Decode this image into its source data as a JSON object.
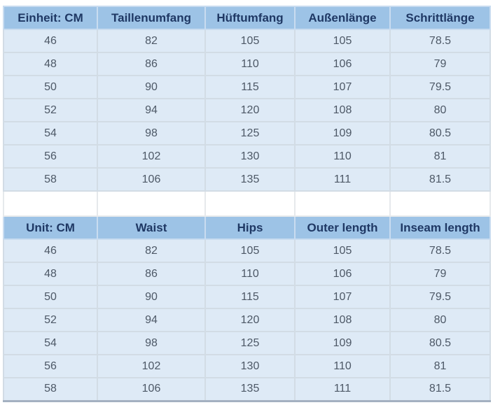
{
  "colors": {
    "header_background": "#9dc3e6",
    "header_text": "#1f3864",
    "row_background": "#deeaf6",
    "row_text": "#4d5866",
    "grid_line": "#d2dce5",
    "bottom_bar": "#a4b1c1",
    "page_background": "#ffffff"
  },
  "tables": {
    "german": {
      "headers": [
        "Einheit: CM",
        "Taillenumfang",
        "Hüftumfang",
        "Außenlänge",
        "Schrittlänge"
      ],
      "rows": [
        [
          "46",
          "82",
          "105",
          "105",
          "78.5"
        ],
        [
          "48",
          "86",
          "110",
          "106",
          "79"
        ],
        [
          "50",
          "90",
          "115",
          "107",
          "79.5"
        ],
        [
          "52",
          "94",
          "120",
          "108",
          "80"
        ],
        [
          "54",
          "98",
          "125",
          "109",
          "80.5"
        ],
        [
          "56",
          "102",
          "130",
          "110",
          "81"
        ],
        [
          "58",
          "106",
          "135",
          "111",
          "81.5"
        ]
      ]
    },
    "english": {
      "headers": [
        "Unit: CM",
        "Waist",
        "Hips",
        "Outer length",
        "Inseam length"
      ],
      "rows": [
        [
          "46",
          "82",
          "105",
          "105",
          "78.5"
        ],
        [
          "48",
          "86",
          "110",
          "106",
          "79"
        ],
        [
          "50",
          "90",
          "115",
          "107",
          "79.5"
        ],
        [
          "52",
          "94",
          "120",
          "108",
          "80"
        ],
        [
          "54",
          "98",
          "125",
          "109",
          "80.5"
        ],
        [
          "56",
          "102",
          "130",
          "110",
          "81"
        ],
        [
          "58",
          "106",
          "135",
          "111",
          "81.5"
        ]
      ]
    }
  }
}
